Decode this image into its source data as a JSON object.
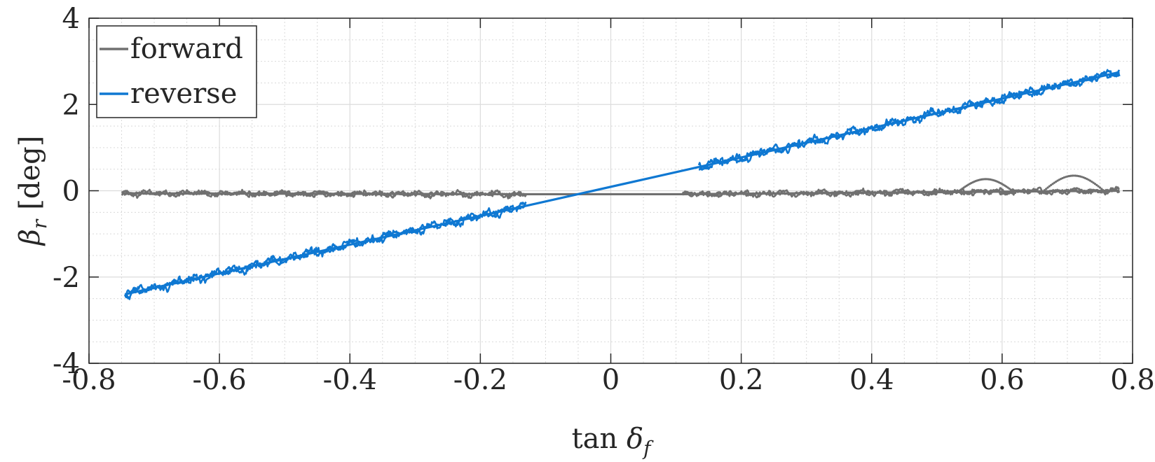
{
  "chart_data": {
    "type": "line",
    "title": "",
    "xlabel": "tan δf",
    "xlabel_parts": {
      "base": "tan ",
      "symbol": "δ",
      "sub": "f"
    },
    "ylabel": "βr [deg]",
    "ylabel_parts": {
      "symbol": "β",
      "sub": "r",
      "unit": "[deg]"
    },
    "xlim": [
      -0.8,
      0.8
    ],
    "ylim": [
      -4,
      4
    ],
    "xticks": [
      -0.8,
      -0.6,
      -0.4,
      -0.2,
      0,
      0.2,
      0.4,
      0.6,
      0.8
    ],
    "yticks": [
      -4,
      -2,
      0,
      2,
      4
    ],
    "xtick_labels": [
      "-0.8",
      "-0.6",
      "-0.4",
      "-0.2",
      "0",
      "0.2",
      "0.4",
      "0.6",
      "0.8"
    ],
    "ytick_labels": [
      "-4",
      "-2",
      "0",
      "2",
      "4"
    ],
    "grid": true,
    "minor_grid": true,
    "legend_position": "top-left",
    "series": [
      {
        "name": "forward",
        "color": "#707070",
        "segments": [
          {
            "x_range": [
              -0.75,
              -0.13
            ],
            "fit": [
              -0.06,
              -0.08
            ],
            "noise": 0.08
          },
          {
            "x_range": [
              -0.13,
              0.11
            ],
            "fit": [
              -0.08,
              -0.08
            ],
            "noise": 0
          },
          {
            "x_range": [
              0.11,
              0.78
            ],
            "fit": [
              -0.08,
              0.0
            ],
            "noise": 0.08
          }
        ],
        "dotted_bumps": [
          {
            "x_range": [
              0.53,
              0.62
            ],
            "peak": 0.32
          },
          {
            "x_range": [
              0.66,
              0.76
            ],
            "peak": 0.4
          }
        ]
      },
      {
        "name": "reverse",
        "color": "#0f78d2",
        "segments": [
          {
            "x_range": [
              -0.745,
              -0.13
            ],
            "fit": [
              -2.4,
              -0.35
            ],
            "noise": 0.12
          },
          {
            "x_range": [
              -0.13,
              0.135
            ],
            "fit": [
              -0.35,
              0.55
            ],
            "noise": 0
          },
          {
            "x_range": [
              0.135,
              0.78
            ],
            "fit": [
              0.55,
              2.75
            ],
            "noise": 0.12
          }
        ]
      }
    ]
  }
}
